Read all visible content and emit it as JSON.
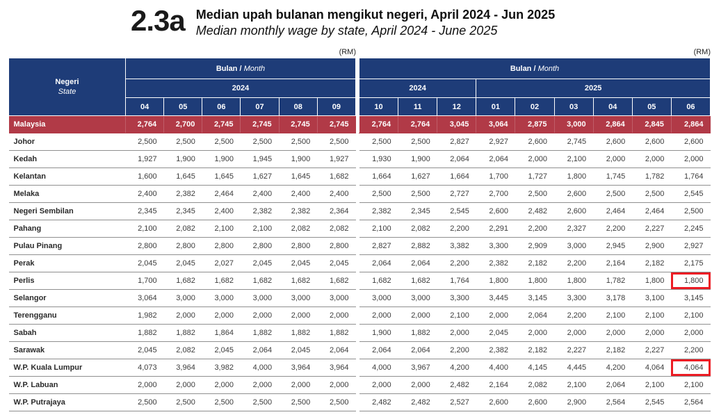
{
  "page": {
    "section_number": "2.3a",
    "title_primary": "Median upah bulanan mengikut negeri, April 2024 - Jun 2025",
    "title_secondary": "Median monthly wage by state, April 2024 - June 2025"
  },
  "table": {
    "unit_label": "(RM)",
    "state_header": {
      "primary": "Negeri",
      "secondary": "State"
    },
    "month_header": {
      "primary": "Bulan",
      "separator": " / ",
      "secondary": "Month"
    },
    "left_section": {
      "year": "2024",
      "months": [
        "04",
        "05",
        "06",
        "07",
        "08",
        "09"
      ]
    },
    "right_section": {
      "year_groups": [
        {
          "year": "2024",
          "months": [
            "10",
            "11",
            "12"
          ]
        },
        {
          "year": "2025",
          "months": [
            "01",
            "02",
            "03",
            "04",
            "05",
            "06"
          ]
        }
      ]
    },
    "rows": [
      {
        "state": "Malaysia",
        "emphasis": true,
        "left": [
          "2,764",
          "2,700",
          "2,745",
          "2,745",
          "2,745",
          "2,745"
        ],
        "right": [
          "2,764",
          "2,764",
          "3,045",
          "3,064",
          "2,875",
          "3,000",
          "2,864",
          "2,845",
          "2,864"
        ]
      },
      {
        "state": "Johor",
        "left": [
          "2,500",
          "2,500",
          "2,500",
          "2,500",
          "2,500",
          "2,500"
        ],
        "right": [
          "2,500",
          "2,500",
          "2,827",
          "2,927",
          "2,600",
          "2,745",
          "2,600",
          "2,600",
          "2,600"
        ]
      },
      {
        "state": "Kedah",
        "left": [
          "1,927",
          "1,900",
          "1,900",
          "1,945",
          "1,900",
          "1,927"
        ],
        "right": [
          "1,930",
          "1,900",
          "2,064",
          "2,064",
          "2,000",
          "2,100",
          "2,000",
          "2,000",
          "2,000"
        ]
      },
      {
        "state": "Kelantan",
        "left": [
          "1,600",
          "1,645",
          "1,645",
          "1,627",
          "1,645",
          "1,682"
        ],
        "right": [
          "1,664",
          "1,627",
          "1,664",
          "1,700",
          "1,727",
          "1,800",
          "1,745",
          "1,782",
          "1,764"
        ]
      },
      {
        "state": "Melaka",
        "left": [
          "2,400",
          "2,382",
          "2,464",
          "2,400",
          "2,400",
          "2,400"
        ],
        "right": [
          "2,500",
          "2,500",
          "2,727",
          "2,700",
          "2,500",
          "2,600",
          "2,500",
          "2,500",
          "2,545"
        ]
      },
      {
        "state": "Negeri Sembilan",
        "left": [
          "2,345",
          "2,345",
          "2,400",
          "2,382",
          "2,382",
          "2,364"
        ],
        "right": [
          "2,382",
          "2,345",
          "2,545",
          "2,600",
          "2,482",
          "2,600",
          "2,464",
          "2,464",
          "2,500"
        ]
      },
      {
        "state": "Pahang",
        "left": [
          "2,100",
          "2,082",
          "2,100",
          "2,100",
          "2,082",
          "2,082"
        ],
        "right": [
          "2,100",
          "2,082",
          "2,200",
          "2,291",
          "2,200",
          "2,327",
          "2,200",
          "2,227",
          "2,245"
        ]
      },
      {
        "state": "Pulau Pinang",
        "left": [
          "2,800",
          "2,800",
          "2,800",
          "2,800",
          "2,800",
          "2,800"
        ],
        "right": [
          "2,827",
          "2,882",
          "3,382",
          "3,300",
          "2,909",
          "3,000",
          "2,945",
          "2,900",
          "2,927"
        ]
      },
      {
        "state": "Perak",
        "left": [
          "2,045",
          "2,045",
          "2,027",
          "2,045",
          "2,045",
          "2,045"
        ],
        "right": [
          "2,064",
          "2,064",
          "2,200",
          "2,382",
          "2,182",
          "2,200",
          "2,164",
          "2,182",
          "2,175"
        ]
      },
      {
        "state": "Perlis",
        "highlight_last": true,
        "left": [
          "1,700",
          "1,682",
          "1,682",
          "1,682",
          "1,682",
          "1,682"
        ],
        "right": [
          "1,682",
          "1,682",
          "1,764",
          "1,800",
          "1,800",
          "1,800",
          "1,782",
          "1,800",
          "1,800"
        ]
      },
      {
        "state": "Selangor",
        "left": [
          "3,064",
          "3,000",
          "3,000",
          "3,000",
          "3,000",
          "3,000"
        ],
        "right": [
          "3,000",
          "3,000",
          "3,300",
          "3,445",
          "3,145",
          "3,300",
          "3,178",
          "3,100",
          "3,145"
        ]
      },
      {
        "state": "Terengganu",
        "left": [
          "1,982",
          "2,000",
          "2,000",
          "2,000",
          "2,000",
          "2,000"
        ],
        "right": [
          "2,000",
          "2,000",
          "2,100",
          "2,000",
          "2,064",
          "2,200",
          "2,100",
          "2,100",
          "2,100"
        ]
      },
      {
        "state": "Sabah",
        "left": [
          "1,882",
          "1,882",
          "1,864",
          "1,882",
          "1,882",
          "1,882"
        ],
        "right": [
          "1,900",
          "1,882",
          "2,000",
          "2,045",
          "2,000",
          "2,000",
          "2,000",
          "2,000",
          "2,000"
        ]
      },
      {
        "state": "Sarawak",
        "left": [
          "2,045",
          "2,082",
          "2,045",
          "2,064",
          "2,045",
          "2,064"
        ],
        "right": [
          "2,064",
          "2,064",
          "2,200",
          "2,382",
          "2,182",
          "2,227",
          "2,182",
          "2,227",
          "2,200"
        ]
      },
      {
        "state": "W.P. Kuala Lumpur",
        "highlight_last": true,
        "left": [
          "4,073",
          "3,964",
          "3,982",
          "4,000",
          "3,964",
          "3,964"
        ],
        "right": [
          "4,000",
          "3,967",
          "4,200",
          "4,400",
          "4,145",
          "4,445",
          "4,200",
          "4,064",
          "4,064"
        ]
      },
      {
        "state": "W.P. Labuan",
        "left": [
          "2,000",
          "2,000",
          "2,000",
          "2,000",
          "2,000",
          "2,000"
        ],
        "right": [
          "2,000",
          "2,000",
          "2,482",
          "2,164",
          "2,082",
          "2,100",
          "2,064",
          "2,100",
          "2,100"
        ]
      },
      {
        "state": "W.P. Putrajaya",
        "left": [
          "2,500",
          "2,500",
          "2,500",
          "2,500",
          "2,500",
          "2,500"
        ],
        "right": [
          "2,482",
          "2,482",
          "2,527",
          "2,600",
          "2,600",
          "2,900",
          "2,564",
          "2,545",
          "2,564"
        ]
      }
    ],
    "colors": {
      "header_bg": "#1E3C78",
      "emphasis_row_bg": "#B13A47",
      "highlight_border": "#EC1C24",
      "row_divider": "#8F8F8F"
    }
  }
}
